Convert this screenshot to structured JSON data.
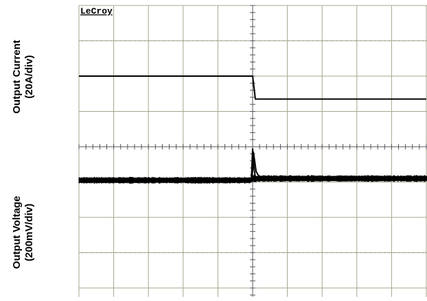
{
  "chart_data": {
    "type": "line",
    "brand": "LeCroy",
    "grid": true,
    "divisions": {
      "x": 10,
      "y": 8
    },
    "channels": [
      {
        "name": "Output Current",
        "label_line1": "Output Current",
        "label_line2": "(20A/div)",
        "scale_per_div": "20A/div",
        "x_div": [
          0,
          5.0,
          5.05,
          5.08,
          10
        ],
        "y_div": [
          6.0,
          6.0,
          5.6,
          5.35,
          5.35
        ]
      },
      {
        "name": "Output Voltage",
        "label_line1": "Output Voltage",
        "label_line2": "(200mV/div)",
        "scale_per_div": "200mV/div",
        "x_div": [
          0,
          4.95,
          5.0,
          5.02,
          5.06,
          5.1,
          5.2,
          5.4,
          10
        ],
        "y_div": [
          3.05,
          3.08,
          3.3,
          3.85,
          3.6,
          3.3,
          3.13,
          3.1,
          3.1
        ]
      }
    ],
    "colors": {
      "trace": "#000000",
      "grid": "#a6a68d",
      "dots": "#777777"
    }
  }
}
